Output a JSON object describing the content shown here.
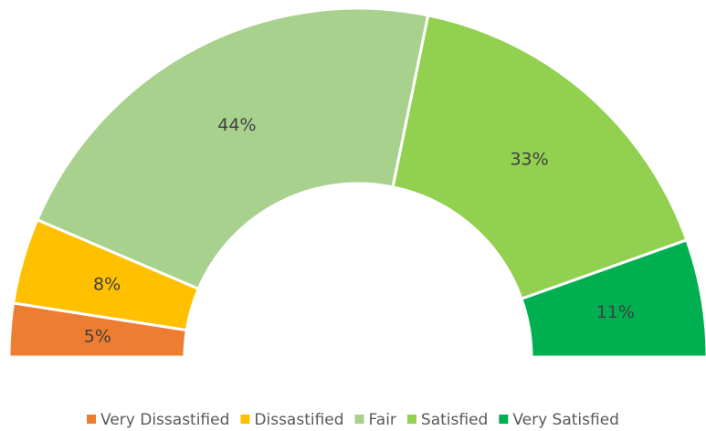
{
  "chart_data": {
    "type": "half-donut",
    "categories": [
      "Very Dissastified",
      "Dissastified",
      "Fair",
      "Satisfied",
      "Very Satisfied"
    ],
    "values": [
      5,
      8,
      44,
      33,
      11
    ],
    "value_labels": [
      "5%",
      "8%",
      "44%",
      "33%",
      "11%"
    ],
    "colors": [
      "#ED7D31",
      "#FFC000",
      "#A9D18E",
      "#92D050",
      "#00B050"
    ],
    "legend": "bottom"
  }
}
